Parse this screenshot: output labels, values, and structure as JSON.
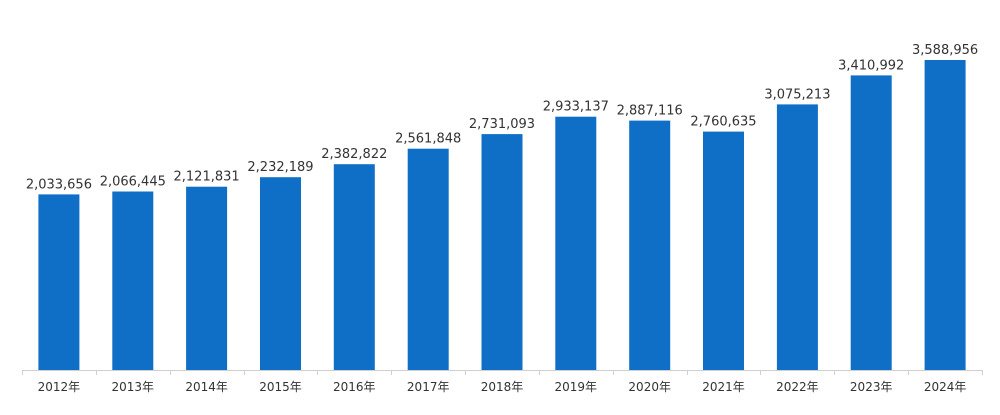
{
  "chart_data": {
    "type": "bar",
    "categories": [
      "2012年",
      "2013年",
      "2014年",
      "2015年",
      "2016年",
      "2017年",
      "2018年",
      "2019年",
      "2020年",
      "2021年",
      "2022年",
      "2023年",
      "2024年"
    ],
    "values": [
      2033656,
      2066445,
      2121831,
      2232189,
      2382822,
      2561848,
      2731093,
      2933137,
      2887116,
      2760635,
      3075213,
      3410992,
      3588956
    ],
    "value_labels": [
      "2,033,656",
      "2,066,445",
      "2,121,831",
      "2,232,189",
      "2,382,822",
      "2,561,848",
      "2,731,093",
      "2,933,137",
      "2,887,116",
      "2,760,635",
      "3,075,213",
      "3,410,992",
      "3,588,956"
    ],
    "title": "",
    "xlabel": "",
    "ylabel": "",
    "ylim": [
      0,
      3800000
    ],
    "grid": false,
    "legend": "none",
    "colors": {
      "bar": "#0f6fc6",
      "axis": "#cfcfcf",
      "text": "#333333"
    }
  }
}
